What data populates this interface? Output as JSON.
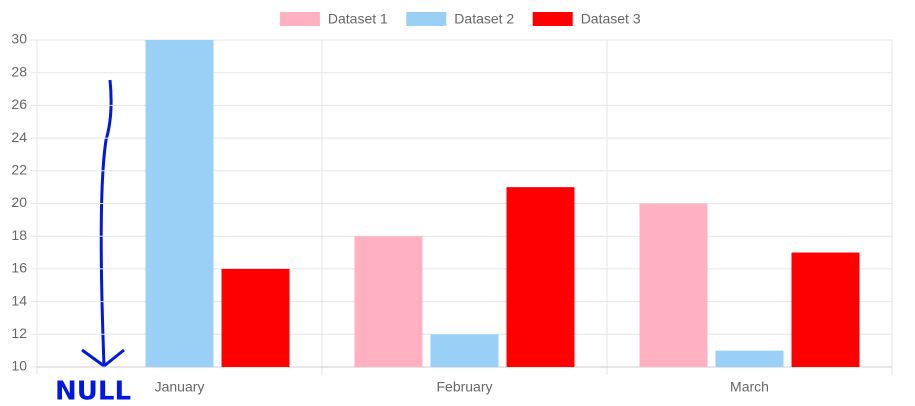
{
  "chart_data": {
    "type": "bar",
    "categories": [
      "January",
      "February",
      "March"
    ],
    "series": [
      {
        "name": "Dataset 1",
        "color": "#ffb1c1",
        "values": [
          null,
          18,
          20
        ]
      },
      {
        "name": "Dataset 2",
        "color": "#9ad0f5",
        "values": [
          30,
          12,
          11
        ]
      },
      {
        "name": "Dataset 3",
        "color": "#ff0000",
        "values": [
          16,
          21,
          17
        ]
      }
    ],
    "ylim": [
      10,
      30
    ],
    "yticks": [
      10,
      12,
      14,
      16,
      18,
      20,
      22,
      24,
      26,
      28,
      30
    ],
    "grid": true,
    "legend": "top",
    "annotation": "NULL"
  }
}
